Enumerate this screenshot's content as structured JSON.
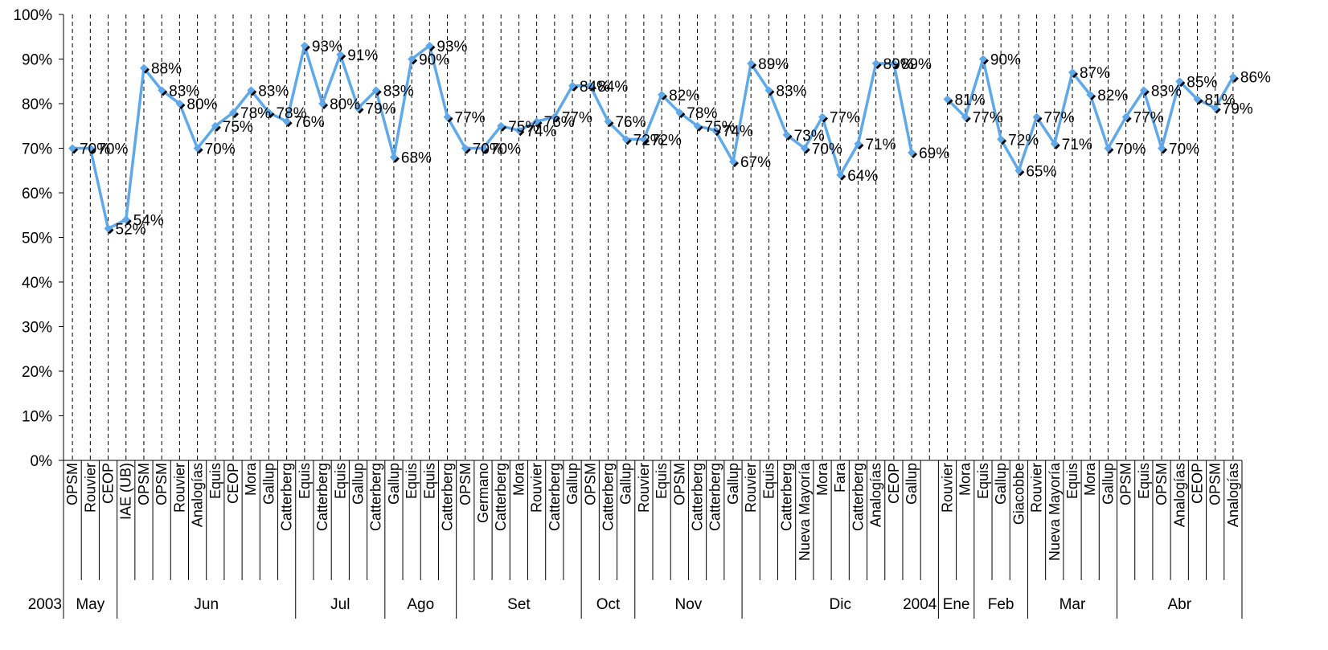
{
  "chart_data": {
    "type": "line",
    "title": "",
    "xlabel": "",
    "ylabel": "",
    "ylim": [
      0,
      1
    ],
    "y_ticks": [
      "0%",
      "10%",
      "20%",
      "30%",
      "40%",
      "50%",
      "60%",
      "70%",
      "80%",
      "90%",
      "100%"
    ],
    "grid": "vertical dashed lines",
    "legend": "none",
    "line_color": "#5fa8ea",
    "marker_color": "#000000",
    "series": [
      {
        "values": [
          0.7,
          0.7,
          0.52,
          0.54,
          0.88,
          0.83,
          0.8,
          0.7,
          0.75,
          0.78,
          0.83,
          0.78,
          0.76,
          0.93,
          0.8,
          0.91,
          0.79,
          0.83,
          0.68,
          0.9,
          0.93,
          0.77,
          0.7,
          0.7,
          0.75,
          0.74,
          0.76,
          0.77,
          0.84,
          0.84,
          0.76,
          0.72,
          0.72,
          0.82,
          0.78,
          0.75,
          0.74,
          0.67,
          0.89,
          0.83,
          0.73,
          0.7,
          0.77,
          0.64,
          0.71,
          0.89,
          0.89,
          0.69,
          null,
          0.81,
          0.77,
          0.9,
          0.72,
          0.65,
          0.77,
          0.71,
          0.87,
          0.82,
          0.7,
          0.77,
          0.83,
          0.7,
          0.85,
          0.81,
          0.79,
          0.86
        ],
        "labels": [
          "70%",
          "70%",
          "52%",
          "54%",
          "88%",
          "83%",
          "80%",
          "70%",
          "75%",
          "78%",
          "83%",
          "78%",
          "76%",
          "93%",
          "80%",
          "91%",
          "79%",
          "83%",
          "68%",
          "90%",
          "93%",
          "77%",
          "70%",
          "70%",
          "75%",
          "74%",
          "76%",
          "77%",
          "84%",
          "84%",
          "76%",
          "72%",
          "72%",
          "82%",
          "78%",
          "75%",
          "74%",
          "67%",
          "89%",
          "83%",
          "73%",
          "70%",
          "77%",
          "64%",
          "71%",
          "89%",
          "89%",
          "69%",
          "",
          "81%",
          "77%",
          "90%",
          "72%",
          "65%",
          "77%",
          "71%",
          "87%",
          "82%",
          "70%",
          "77%",
          "83%",
          "70%",
          "85%",
          "81%",
          "79%",
          "86%"
        ]
      }
    ],
    "categories": [
      "OPSM",
      "Rouvier",
      "CEOP",
      "IAE (UB)",
      "OPSM",
      "OPSM",
      "Rouvier",
      "Analogías",
      "Equis",
      "CEOP",
      "Mora",
      "Gallup",
      "Catterberg",
      "Equis",
      "Catterberg",
      "Equis",
      "Gallup",
      "Catterberg",
      "Gallup",
      "Equis",
      "Equis",
      "Catterberg",
      "OPSM",
      "Germano",
      "Catterberg",
      "Mora",
      "Rouvier",
      "Catterberg",
      "Gallup",
      "OPSM",
      "Catterberg",
      "Gallup",
      "Rouvier",
      "Equis",
      "OPSM",
      "Catterberg",
      "Catterberg",
      "Gallup",
      "Rouvier",
      "Equis",
      "Catterberg",
      "Nueva Mayoría",
      "Mora",
      "Fara",
      "Catterberg",
      "Analogías",
      "CEOP",
      "Gallup",
      "",
      "Rouvier",
      "Mora",
      "Equis",
      "Gallup",
      "Giacobbe",
      "Rouvier",
      "Nueva Mayoría",
      "Equis",
      "Mora",
      "Gallup",
      "OPSM",
      "Equis",
      "OPSM",
      "Analogías",
      "CEOP",
      "OPSM",
      "Analogías"
    ],
    "months": [
      {
        "label": "2003",
        "start": 0,
        "end": 0
      },
      {
        "label": "May",
        "start": 0,
        "end": 3
      },
      {
        "label": "Jun",
        "start": 3,
        "end": 13
      },
      {
        "label": "Jul",
        "start": 13,
        "end": 18
      },
      {
        "label": "Ago",
        "start": 18,
        "end": 22
      },
      {
        "label": "Set",
        "start": 22,
        "end": 29
      },
      {
        "label": "Oct",
        "start": 29,
        "end": 32
      },
      {
        "label": "Nov",
        "start": 32,
        "end": 38
      },
      {
        "label": "Dic",
        "start": 38,
        "end": 49
      },
      {
        "label": "2004",
        "start": 49,
        "end": 49
      },
      {
        "label": "Ene",
        "start": 49,
        "end": 51
      },
      {
        "label": "Feb",
        "start": 51,
        "end": 54
      },
      {
        "label": "Mar",
        "start": 54,
        "end": 59
      },
      {
        "label": "Abr",
        "start": 59,
        "end": 66
      }
    ]
  }
}
